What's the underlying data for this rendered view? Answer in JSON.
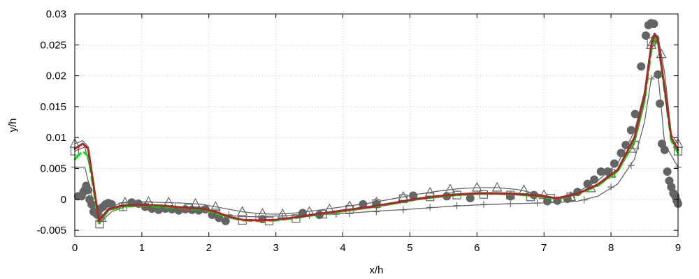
{
  "chart_data": {
    "type": "line",
    "xlabel": "x/h",
    "ylabel": "y/h",
    "xlim": [
      0,
      9
    ],
    "ylim": [
      -0.006,
      0.03
    ],
    "x_ticks": [
      0,
      1,
      2,
      3,
      4,
      5,
      6,
      7,
      8,
      9
    ],
    "x_tick_labels": [
      "0",
      "1",
      "2",
      "3",
      "4",
      "5",
      "6",
      "7",
      "8",
      "9"
    ],
    "y_ticks": [
      -0.005,
      0,
      0.005,
      0.01,
      0.015,
      0.02,
      0.025,
      0.03
    ],
    "y_tick_labels": [
      "-0.005",
      "0",
      "0.005",
      "0.01",
      "0.015",
      "0.02",
      "0.025",
      "0.03"
    ],
    "grid": true,
    "series": [
      {
        "style": "line",
        "color": "#666666",
        "marker": "plus",
        "x": [
          0,
          0.15,
          0.3,
          0.4,
          0.55,
          0.75,
          1,
          1.3,
          1.6,
          1.9,
          2.1,
          2.3,
          2.5,
          2.75,
          3,
          3.3,
          3.6,
          4,
          4.5,
          5,
          5.5,
          6,
          6.5,
          6.9,
          7.2,
          7.5,
          7.8,
          8.1,
          8.35,
          8.5,
          8.6,
          8.7,
          8.8,
          9
        ],
        "y": [
          0.0052,
          0.0052,
          -0.0015,
          -0.0035,
          -0.002,
          -0.0012,
          -0.0011,
          -0.0012,
          -0.0014,
          -0.0017,
          -0.0022,
          -0.0026,
          -0.0028,
          -0.0028,
          -0.0027,
          -0.0026,
          -0.0025,
          -0.0023,
          -0.0019,
          -0.0016,
          -0.0012,
          -0.0009,
          -0.0007,
          -0.0006,
          -0.0005,
          -0.0003,
          0.0005,
          0.0025,
          0.0065,
          0.0125,
          0.0195,
          0.0205,
          0.009,
          0.0052
        ],
        "markers_x": [
          0,
          0.72,
          1.1,
          1.5,
          1.9,
          2.3,
          2.7,
          3.1,
          3.5,
          3.9,
          4.1,
          4.5,
          4.9,
          5.3,
          5.7,
          6.1,
          6.5,
          6.9,
          7.2,
          7.6,
          8,
          8.3,
          8.6,
          9
        ],
        "markers_y": [
          0.0052,
          -0.0012,
          -0.0011,
          -0.0013,
          -0.0016,
          -0.0025,
          -0.0028,
          -0.0027,
          -0.0026,
          -0.0024,
          -0.0023,
          -0.002,
          -0.0017,
          -0.0013,
          -0.001,
          -0.0008,
          -0.0007,
          -0.0006,
          -0.0004,
          -0.0001,
          0.002,
          0.0055,
          0.0195,
          0.0052
        ]
      },
      {
        "style": "line",
        "color": "#666666",
        "marker": "triangle",
        "x": [
          0,
          0.12,
          0.2,
          0.35,
          0.5,
          0.7,
          1,
          1.3,
          1.6,
          1.9,
          2.1,
          2.3,
          2.5,
          2.75,
          3,
          3.3,
          3.6,
          4,
          4.4,
          4.8,
          5.1,
          5.4,
          5.7,
          6,
          6.3,
          6.6,
          6.9,
          7.2,
          7.5,
          7.8,
          8.1,
          8.35,
          8.5,
          8.6,
          8.7,
          8.8,
          8.9,
          9
        ],
        "y": [
          0.009,
          0.0095,
          0.0085,
          -0.0035,
          -0.0015,
          -0.0005,
          -0.0004,
          -0.0005,
          -0.0006,
          -0.0008,
          -0.0012,
          -0.0016,
          -0.002,
          -0.0023,
          -0.0024,
          -0.0022,
          -0.0018,
          -0.0012,
          -0.0006,
          0.0002,
          0.0008,
          0.0013,
          0.0017,
          0.0019,
          0.0019,
          0.0016,
          0.0009,
          0.0002,
          0.0012,
          0.003,
          0.0058,
          0.011,
          0.0175,
          0.0255,
          0.0265,
          0.0205,
          0.0105,
          0.009
        ],
        "markers_x": [
          0,
          0.4,
          0.75,
          1.1,
          1.4,
          1.8,
          2.1,
          2.5,
          2.8,
          3.1,
          3.5,
          3.8,
          4.1,
          4.5,
          4.9,
          5.3,
          5.6,
          6,
          6.3,
          6.7,
          7,
          7.4,
          7.7,
          8,
          8.3,
          8.6,
          8.75,
          9
        ],
        "markers_y": [
          0.009,
          -0.003,
          -0.0005,
          -0.0004,
          -0.0005,
          -0.0007,
          -0.0012,
          -0.002,
          -0.0023,
          -0.0024,
          -0.002,
          -0.0016,
          -0.0011,
          -0.0005,
          0.0004,
          0.0011,
          0.0016,
          0.0019,
          0.0019,
          0.0015,
          0.0007,
          0.0004,
          0.0018,
          0.0042,
          0.0082,
          0.025,
          0.0235,
          0.009
        ]
      },
      {
        "style": "line",
        "color": "#666666",
        "marker": "square",
        "x": [
          0,
          0.15,
          0.25,
          0.37,
          0.5,
          0.7,
          1,
          1.3,
          1.6,
          1.9,
          2.1,
          2.3,
          2.5,
          2.75,
          3,
          3.3,
          3.6,
          4,
          4.4,
          4.8,
          5.1,
          5.4,
          5.7,
          6,
          6.3,
          6.6,
          6.9,
          7.2,
          7.5,
          7.8,
          8.1,
          8.35,
          8.5,
          8.6,
          8.7,
          8.8,
          8.9,
          9
        ],
        "y": [
          0.0078,
          0.0085,
          0.004,
          -0.004,
          -0.0018,
          -0.0012,
          -0.001,
          -0.0011,
          -0.0013,
          -0.0016,
          -0.0022,
          -0.0028,
          -0.0033,
          -0.0035,
          -0.0034,
          -0.003,
          -0.0026,
          -0.002,
          -0.0014,
          -0.0007,
          -0.0001,
          0.0003,
          0.0006,
          0.0008,
          0.0008,
          0.0007,
          0.0004,
          0.0001,
          0.0008,
          0.0022,
          0.0045,
          0.009,
          0.0155,
          0.0245,
          0.0255,
          0.0185,
          0.0095,
          0.0078
        ],
        "markers_x": [
          0,
          0.37,
          0.72,
          1.1,
          1.7,
          2.1,
          2.5,
          2.9,
          3.3,
          3.7,
          4.1,
          4.5,
          4.9,
          5.3,
          5.7,
          6.1,
          6.5,
          6.8,
          7.1,
          7.4,
          8,
          8.35,
          8.6,
          9
        ],
        "markers_y": [
          0.0078,
          -0.004,
          -0.0012,
          -0.001,
          -0.0014,
          -0.0022,
          -0.0034,
          -0.0035,
          -0.0031,
          -0.0024,
          -0.0016,
          -0.0007,
          0.0001,
          0.0004,
          0.0007,
          0.0008,
          0.0007,
          0.0004,
          0.0002,
          0.0004,
          0.0042,
          0.0088,
          0.0255,
          0.0078
        ]
      },
      {
        "style": "markers",
        "color": "#646464",
        "marker": "circle",
        "x": [
          0.05,
          0.1,
          0.13,
          0.15,
          0.17,
          0.2,
          0.22,
          0.25,
          0.28,
          0.31,
          0.34,
          0.38,
          0.42,
          0.46,
          0.5,
          0.55,
          0.85,
          0.95,
          1.05,
          1.15,
          1.25,
          1.35,
          1.45,
          1.55,
          1.65,
          1.75,
          1.85,
          1.95,
          2.05,
          2.15,
          2.25,
          2.8,
          3.4,
          3.65,
          4.3,
          4.5,
          5.05,
          5.55,
          5.9,
          6.5,
          6.85,
          7.05,
          7.2,
          7.35,
          7.5,
          7.65,
          7.75,
          7.85,
          7.95,
          8.05,
          8.15,
          8.22,
          8.3,
          8.36,
          8.45,
          8.52,
          8.56,
          8.6,
          8.64,
          8.66,
          8.7,
          8.73,
          8.76,
          8.8,
          8.84,
          8.87,
          8.9,
          8.93,
          8.96,
          8.98,
          9.0
        ],
        "y": [
          0.0005,
          0.0005,
          0.0012,
          0.0015,
          0.0022,
          0.0015,
          0.0,
          -0.0008,
          -0.002,
          -0.0022,
          -0.0025,
          -0.0015,
          -0.0012,
          -0.0008,
          -0.0006,
          -0.0008,
          -0.0005,
          -0.0007,
          -0.0012,
          -0.0015,
          -0.0017,
          -0.0015,
          -0.0016,
          -0.0018,
          -0.0016,
          -0.0017,
          -0.0018,
          -0.0016,
          -0.0025,
          -0.003,
          -0.0035,
          -0.0032,
          -0.0022,
          -0.0025,
          -0.0008,
          -0.0008,
          0.0006,
          0.0005,
          0.0002,
          0.0005,
          0.0007,
          -0.0003,
          -0.0002,
          0.0001,
          0.0012,
          0.0025,
          0.0032,
          0.0045,
          0.0045,
          0.0058,
          0.0075,
          0.0088,
          0.0112,
          0.0138,
          0.0215,
          0.0265,
          0.0282,
          0.0285,
          0.0284,
          0.026,
          0.0202,
          0.0155,
          0.009,
          0.008,
          0.0045,
          0.003,
          0.002,
          0.001,
          0.0005,
          -0.0002,
          -0.0007
        ]
      },
      {
        "style": "line",
        "color": "#00e000",
        "dashed": true,
        "width": 3,
        "x": [
          0,
          0.12,
          0.2,
          0.36,
          0.5,
          0.7,
          1,
          1.3,
          1.6,
          1.9,
          2.1,
          2.3,
          2.5,
          2.75,
          3,
          3.3,
          3.6,
          4,
          4.4,
          4.8,
          5.1,
          5.4,
          5.7,
          6,
          6.3,
          6.6,
          6.9,
          7.2,
          7.5,
          7.8,
          8.1,
          8.35,
          8.5,
          8.6,
          8.65,
          8.7,
          8.8,
          8.9,
          9
        ],
        "y": [
          0.0065,
          0.0078,
          0.007,
          -0.0038,
          -0.0018,
          -0.0012,
          -0.001,
          -0.0012,
          -0.0014,
          -0.0016,
          -0.0022,
          -0.0029,
          -0.0034,
          -0.0035,
          -0.0034,
          -0.003,
          -0.0025,
          -0.0019,
          -0.0013,
          -0.0006,
          0.0,
          0.0004,
          0.0007,
          0.0009,
          0.0009,
          0.0008,
          0.0005,
          0.0001,
          0.0008,
          0.0022,
          0.0045,
          0.0095,
          0.016,
          0.024,
          0.0262,
          0.0255,
          0.0175,
          0.0095,
          0.0075
        ]
      },
      {
        "style": "line",
        "color": "#a52a2a",
        "width": 3,
        "x": [
          0,
          0.12,
          0.2,
          0.36,
          0.5,
          0.7,
          1,
          1.3,
          1.6,
          1.9,
          2.1,
          2.3,
          2.5,
          2.75,
          3,
          3.3,
          3.6,
          4,
          4.4,
          4.8,
          5.1,
          5.4,
          5.7,
          6,
          6.3,
          6.6,
          6.9,
          7.2,
          7.5,
          7.8,
          8.1,
          8.35,
          8.5,
          8.6,
          8.65,
          8.7,
          8.8,
          8.9,
          9
        ],
        "y": [
          0.0082,
          0.009,
          0.0082,
          -0.0035,
          -0.0016,
          -0.001,
          -0.0009,
          -0.001,
          -0.0013,
          -0.0015,
          -0.002,
          -0.0028,
          -0.0033,
          -0.0034,
          -0.0033,
          -0.0029,
          -0.0024,
          -0.0018,
          -0.0012,
          -0.0005,
          0.0001,
          0.0005,
          0.0008,
          0.001,
          0.001,
          0.0009,
          0.0006,
          0.0002,
          0.0009,
          0.0024,
          0.0048,
          0.01,
          0.0168,
          0.0248,
          0.0268,
          0.0258,
          0.018,
          0.01,
          0.008
        ]
      }
    ]
  }
}
